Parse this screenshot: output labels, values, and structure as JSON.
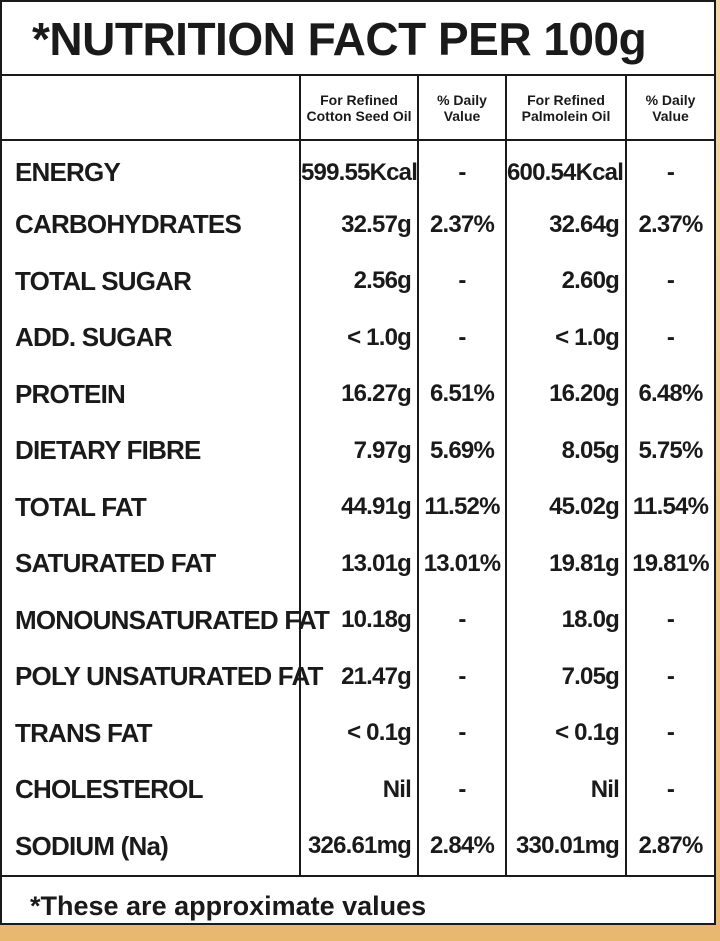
{
  "title": "*NUTRITION FACT PER 100g",
  "columns": {
    "cotton_line1": "For Refined",
    "cotton_line2": "Cotton Seed Oil",
    "dv1_line1": "% Daily",
    "dv1_line2": "Value",
    "palm_line1": "For Refined",
    "palm_line2": "Palmolein Oil",
    "dv2_line1": "% Daily",
    "dv2_line2": "Value"
  },
  "rows": [
    {
      "nutrient": "ENERGY",
      "cotton": "599.55Kcal",
      "cotton_dv": "-",
      "palm": "600.54Kcal",
      "palm_dv": "-"
    },
    {
      "nutrient": "CARBOHYDRATES",
      "cotton": "32.57g",
      "cotton_dv": "2.37%",
      "palm": "32.64g",
      "palm_dv": "2.37%"
    },
    {
      "nutrient": "TOTAL SUGAR",
      "cotton": "2.56g",
      "cotton_dv": "-",
      "palm": "2.60g",
      "palm_dv": "-"
    },
    {
      "nutrient": "ADD. SUGAR",
      "cotton": "< 1.0g",
      "cotton_dv": "-",
      "palm": "< 1.0g",
      "palm_dv": "-"
    },
    {
      "nutrient": "PROTEIN",
      "cotton": "16.27g",
      "cotton_dv": "6.51%",
      "palm": "16.20g",
      "palm_dv": "6.48%"
    },
    {
      "nutrient": "DIETARY FIBRE",
      "cotton": "7.97g",
      "cotton_dv": "5.69%",
      "palm": "8.05g",
      "palm_dv": "5.75%"
    },
    {
      "nutrient": "TOTAL FAT",
      "cotton": "44.91g",
      "cotton_dv": "11.52%",
      "palm": "45.02g",
      "palm_dv": "11.54%"
    },
    {
      "nutrient": "SATURATED FAT",
      "cotton": "13.01g",
      "cotton_dv": "13.01%",
      "palm": "19.81g",
      "palm_dv": "19.81%"
    },
    {
      "nutrient": "MONOUNSATURATED FAT",
      "cotton": "10.18g",
      "cotton_dv": "-",
      "palm": "18.0g",
      "palm_dv": "-"
    },
    {
      "nutrient": "POLY UNSATURATED FAT",
      "cotton": "21.47g",
      "cotton_dv": "-",
      "palm": "7.05g",
      "palm_dv": "-"
    },
    {
      "nutrient": "TRANS FAT",
      "cotton": "< 0.1g",
      "cotton_dv": "-",
      "palm": "< 0.1g",
      "palm_dv": "-"
    },
    {
      "nutrient": "CHOLESTEROL",
      "cotton": "Nil",
      "cotton_dv": "-",
      "palm": "Nil",
      "palm_dv": "-"
    },
    {
      "nutrient": "SODIUM (Na)",
      "cotton": "326.61mg",
      "cotton_dv": "2.84%",
      "palm": "330.01mg",
      "palm_dv": "2.87%"
    }
  ],
  "footer": "*These are approximate values"
}
